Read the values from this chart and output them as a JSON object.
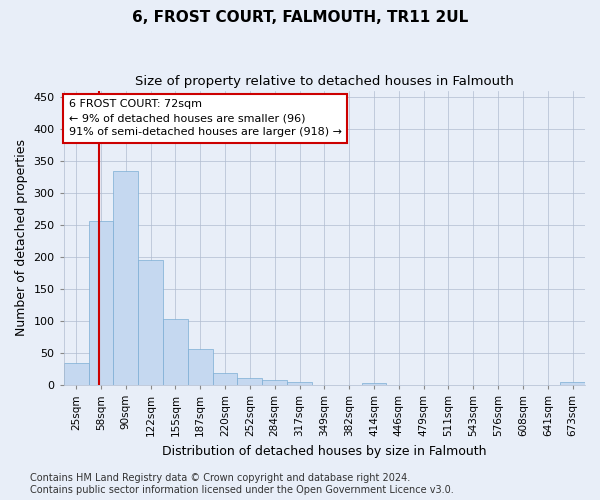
{
  "title": "6, FROST COURT, FALMOUTH, TR11 2UL",
  "subtitle": "Size of property relative to detached houses in Falmouth",
  "xlabel": "Distribution of detached houses by size in Falmouth",
  "ylabel": "Number of detached properties",
  "bar_labels": [
    "25sqm",
    "58sqm",
    "90sqm",
    "122sqm",
    "155sqm",
    "187sqm",
    "220sqm",
    "252sqm",
    "284sqm",
    "317sqm",
    "349sqm",
    "382sqm",
    "414sqm",
    "446sqm",
    "479sqm",
    "511sqm",
    "543sqm",
    "576sqm",
    "608sqm",
    "641sqm",
    "673sqm"
  ],
  "bar_values": [
    35,
    257,
    335,
    196,
    103,
    57,
    19,
    11,
    8,
    5,
    0,
    0,
    3,
    0,
    0,
    0,
    0,
    0,
    0,
    0,
    4
  ],
  "bar_color": "#c5d8f0",
  "bar_edge_color": "#7badd4",
  "vline_color": "#cc0000",
  "annotation_text": "6 FROST COURT: 72sqm\n← 9% of detached houses are smaller (96)\n91% of semi-detached houses are larger (918) →",
  "annotation_box_color": "#ffffff",
  "annotation_box_edge": "#cc0000",
  "ylim": [
    0,
    460
  ],
  "yticks": [
    0,
    50,
    100,
    150,
    200,
    250,
    300,
    350,
    400,
    450
  ],
  "footer_line1": "Contains HM Land Registry data © Crown copyright and database right 2024.",
  "footer_line2": "Contains public sector information licensed under the Open Government Licence v3.0.",
  "background_color": "#e8eef8",
  "title_fontsize": 11,
  "subtitle_fontsize": 9.5,
  "axis_label_fontsize": 9,
  "tick_fontsize": 8,
  "annotation_fontsize": 8,
  "footer_fontsize": 7
}
